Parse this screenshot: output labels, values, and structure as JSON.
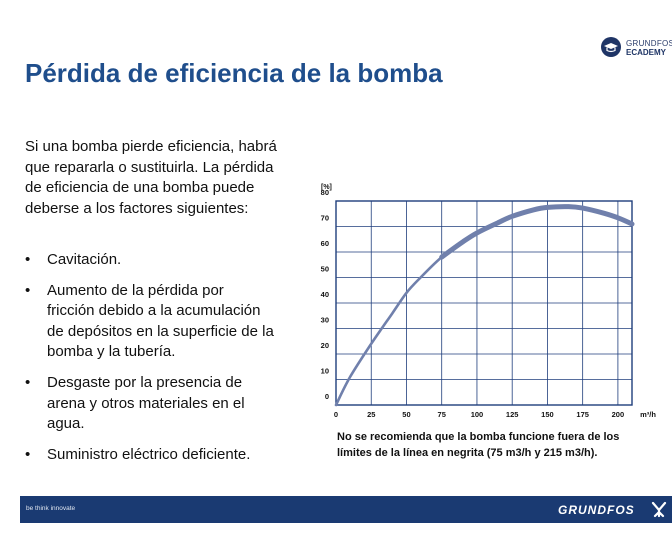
{
  "header": {
    "logo_line1": "GRUNDFOS",
    "logo_line2": "ECADEMY",
    "logo_icon": "graduation-cap-icon"
  },
  "title": "Pérdida de eficiencia de la bomba",
  "intro": "Si una bomba pierde eficiencia, habrá que repararla o sustituirla. La pérdida de eficiencia de una bomba puede deberse a los factores siguientes:",
  "bullet_symbol": "•",
  "bullets": [
    "Cavitación.",
    "Aumento de la pérdida por fricción debido a la acumulación de depósitos en la superficie de la bomba y la tubería.",
    "Desgaste por la presencia de arena y otros materiales en el agua.",
    "Suministro eléctrico deficiente."
  ],
  "chart_data": {
    "type": "line",
    "ylabel": "[%]",
    "xunit": "m³/h",
    "xlim": [
      0,
      210
    ],
    "ylim": [
      0,
      80
    ],
    "xticks": [
      0,
      25,
      50,
      75,
      100,
      125,
      150,
      175,
      200
    ],
    "yticks": [
      0,
      10,
      20,
      30,
      40,
      50,
      60,
      70,
      80
    ],
    "grid": true,
    "line_color": "#7080ac",
    "x": [
      0,
      10,
      25,
      40,
      50,
      60,
      75,
      90,
      100,
      115,
      125,
      140,
      150,
      165,
      175,
      190,
      200,
      210
    ],
    "y": [
      0,
      11,
      24,
      36,
      44,
      50,
      58,
      64,
      67.5,
      71.5,
      74,
      76.5,
      77.5,
      77.8,
      77.2,
      75.2,
      73.4,
      71
    ],
    "bold_from": 75,
    "bold_to": 215
  },
  "note": "No se recomienda que la bomba funcione fuera de los límites de la línea en negrita (75 m3/h y 215 m3/h).",
  "footer": {
    "tagline": "be think innovate",
    "brand": "GRUNDFOS",
    "brand_color": "#1a3a72",
    "brand_icon": "grundfos-man-icon"
  }
}
